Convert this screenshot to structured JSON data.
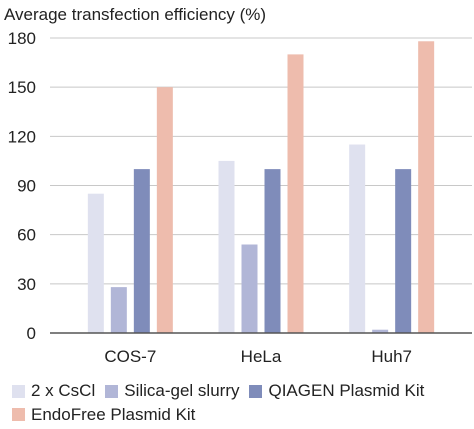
{
  "chart_data": {
    "type": "bar",
    "ylabel": "Average transfection efficiency (%)",
    "categories": [
      "COS-7",
      "HeLa",
      "Huh7"
    ],
    "series": [
      {
        "name": "2 x CsCl",
        "color": "#dfe1ef",
        "values": [
          85,
          105,
          115
        ]
      },
      {
        "name": "Silica-gel slurry",
        "color": "#b1b6d7",
        "values": [
          28,
          54,
          2
        ]
      },
      {
        "name": "QIAGEN Plasmid Kit",
        "color": "#7f8cba",
        "values": [
          100,
          100,
          100
        ]
      },
      {
        "name": "EndoFree Plasmid Kit",
        "color": "#eebcad",
        "values": [
          150,
          170,
          178
        ]
      }
    ],
    "yticks": [
      0,
      30,
      60,
      90,
      120,
      150,
      180
    ],
    "ylim": [
      0,
      180
    ],
    "grid": true,
    "legend_position": "bottom"
  }
}
